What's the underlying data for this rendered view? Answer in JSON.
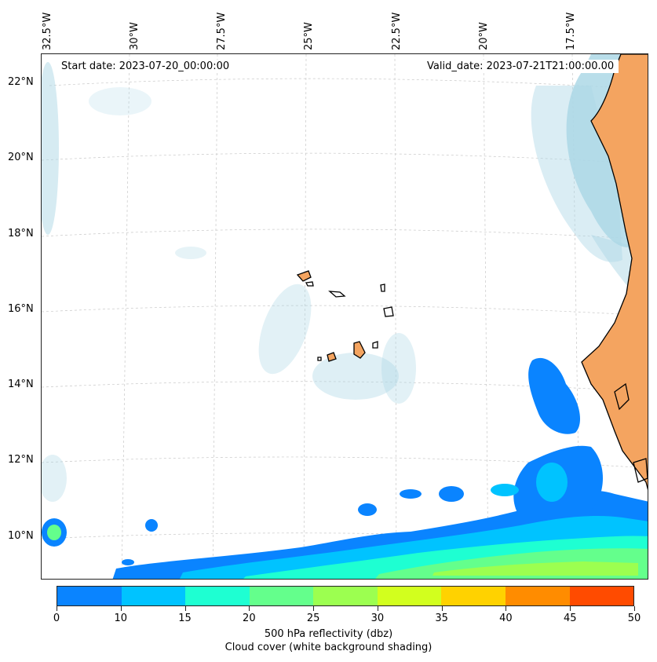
{
  "map": {
    "start_date": "Start date: 2023-07-20_00:00:00",
    "valid_date": "Valid_date: 2023-07-21T21:00:00.00",
    "lon_labels": [
      "32.5°W",
      "30°W",
      "27.5°W",
      "25°W",
      "22.5°W",
      "20°W",
      "17.5°W"
    ],
    "lat_labels": [
      "22°N",
      "20°N",
      "18°N",
      "16°N",
      "14°N",
      "12°N",
      "10°N"
    ],
    "land_color": "#f4a460",
    "cloud_color": "#add8e6",
    "coast_color": "#000000"
  },
  "colorbar": {
    "ticks": [
      "0",
      "10",
      "15",
      "20",
      "25",
      "30",
      "35",
      "40",
      "45",
      "50"
    ],
    "colors": [
      "#0a84ff",
      "#00c3ff",
      "#1effd2",
      "#64ff8c",
      "#9cff50",
      "#d2ff1e",
      "#ffd200",
      "#ff8c00",
      "#ff4b00"
    ],
    "label": "500 hPa reflectivity (dbz)",
    "sublabel": "Cloud cover (white background shading)"
  }
}
